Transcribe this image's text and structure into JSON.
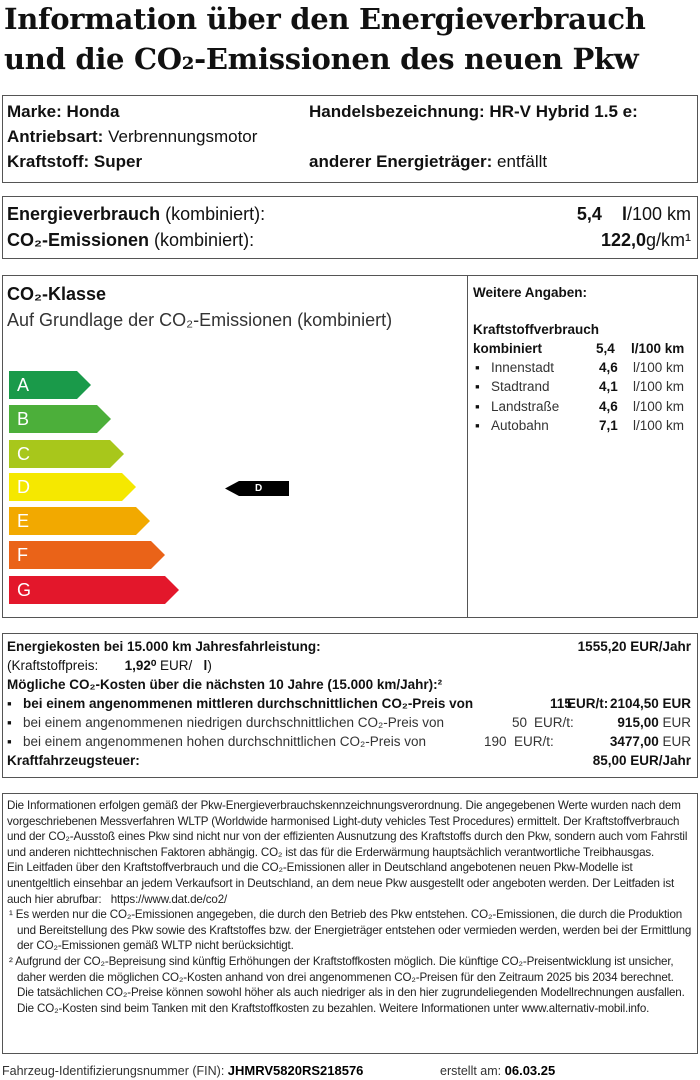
{
  "title": {
    "line1": "Information über den Energieverbrauch",
    "line2": "und die CO₂-Emissionen des neuen Pkw"
  },
  "vehicle": {
    "marke_label": "Marke:",
    "marke": "Honda",
    "handel_label": "Handelsbezeichnung:",
    "handel": "HR-V Hybrid 1.5 e:",
    "antrieb_label": "Antriebsart:",
    "antrieb": "Verbrennungsmotor",
    "kraftstoff_label": "Kraftstoff:",
    "kraftstoff": "Super",
    "anderer_label": "anderer Energieträger:",
    "anderer": "entfällt"
  },
  "consumption": {
    "energie_label": "Energieverbrauch",
    "energie_suffix": "(kombiniert):",
    "energie_value": "5,4",
    "energie_unit_l": "l",
    "energie_unit": "/100 km",
    "co2_label": "CO₂-Emissionen",
    "co2_suffix": "(kombiniert):",
    "co2_value": "122,0",
    "co2_unit": "g/km¹"
  },
  "co2class": {
    "heading": "CO₂-Klasse",
    "subheading": "Auf Grundlage der CO₂-Emissionen (kombiniert)",
    "classes": [
      {
        "letter": "A",
        "color": "#1a9a4a"
      },
      {
        "letter": "B",
        "color": "#4caf3a"
      },
      {
        "letter": "C",
        "color": "#a8c71b"
      },
      {
        "letter": "D",
        "color": "#f5e800"
      },
      {
        "letter": "E",
        "color": "#f2a900"
      },
      {
        "letter": "F",
        "color": "#ea6318"
      },
      {
        "letter": "G",
        "color": "#e3172b"
      }
    ],
    "current": "D"
  },
  "weitere": {
    "heading": "Weitere Angaben:",
    "sub": "Kraftstoffverbrauch",
    "kombiniert_label": "kombiniert",
    "kombiniert_value": "5,4",
    "kombiniert_unit": "l/100 km",
    "rows": [
      {
        "label": "Innenstadt",
        "value": "4,6",
        "unit": "l/100 km"
      },
      {
        "label": "Stadtrand",
        "value": "4,1",
        "unit": "l/100 km"
      },
      {
        "label": "Landstraße",
        "value": "4,6",
        "unit": "l/100 km"
      },
      {
        "label": "Autobahn",
        "value": "7,1",
        "unit": "l/100 km"
      }
    ]
  },
  "costs": {
    "energie_label": "Energiekosten bei 15.000 km Jahresfahrleistung:",
    "energie_value": "1555,20 EUR/Jahr",
    "preis_label": "(Kraftstoffpreis:",
    "preis_value": "1,92⁰",
    "preis_unit": "EUR/",
    "preis_l": "l",
    "preis_close": ")",
    "co2_heading": "Mögliche CO₂-Kosten über die nächsten 10 Jahre (15.000 km/Jahr):²",
    "rows": [
      {
        "text": "bei einem angenommenen mittleren durchschnittlichen CO₂-Preis von",
        "price": "115",
        "unit": "EUR/t:",
        "value": "2104,50 EUR"
      },
      {
        "text": "bei einem angenommenen niedrigen durchschnittlichen CO₂-Preis von",
        "price": "50",
        "unit": "EUR/t:",
        "value": "915,00",
        "cur": "EUR"
      },
      {
        "text": "bei einem angenommenen hohen durchschnittlichen CO₂-Preis von",
        "price": "190",
        "unit": "EUR/t:",
        "value": "3477,00",
        "cur": "EUR"
      }
    ],
    "steuer_label": "Kraftfahrzeugsteuer:",
    "steuer_value": "85,00 EUR/Jahr"
  },
  "info": {
    "p1": "Die Informationen erfolgen gemäß der Pkw-Energieverbrauchskennzeichnungsverordnung. Die angegebenen Werte wurden nach dem vorgeschriebenen Messverfahren WLTP (Worldwide harmonised Light-duty vehicles Test Procedures) ermittelt. Der Kraftstoffverbrauch und der CO₂-Ausstoß eines Pkw sind nicht nur von der effizienten Ausnutzung des Kraftstoffs durch den Pkw, sondern auch vom Fahrstil und anderen nichttechnischen Faktoren abhängig. CO₂ ist das für die Erderwärmung hauptsächlich verantwortliche Treibhausgas.",
    "p2": "Ein Leitfaden über den Kraftstoffverbrauch und die CO₂-Emissionen aller in Deutschland angebotenen neuen Pkw-Modelle ist unentgeltlich einsehbar an jedem Verkaufsort in Deutschland, an dem neue Pkw ausgestellt oder angeboten werden. Der Leitfaden ist auch hier abrufbar:",
    "link": "https://www.dat.de/co2/",
    "fn1": "¹ Es werden nur die CO₂-Emissionen angegeben, die durch den Betrieb des Pkw entstehen. CO₂-Emissionen, die durch die Produktion und Bereitstellung des Pkw sowie des Kraftstoffes bzw. der Energieträger entstehen oder vermieden werden, werden bei der Ermittlung der CO₂-Emissionen gemäß WLTP nicht berücksichtigt.",
    "fn2": "² Aufgrund der CO₂-Bepreisung sind künftig Erhöhungen der Kraftstoffkosten möglich. Die künftige CO₂-Preisentwicklung ist unsicher, daher werden die möglichen CO₂-Kosten anhand von drei angenommenen CO₂-Preisen für den Zeitraum  2025  bis  2034  berechnet. Die tatsächlichen CO₂-Preise können sowohl höher als auch niedriger als in den hier zugrundeliegenden Modellrechnungen ausfallen. Die CO₂-Kosten sind beim Tanken mit den Kraftstoffkosten zu bezahlen. Weitere Informationen unter www.alternativ-mobil.info."
  },
  "footer": {
    "fin_label": "Fahrzeug-Identifizierungsnummer (FIN):",
    "fin": "JHMRV5820RS218576",
    "date_label": "erstellt am:",
    "date": "06.03.25"
  }
}
